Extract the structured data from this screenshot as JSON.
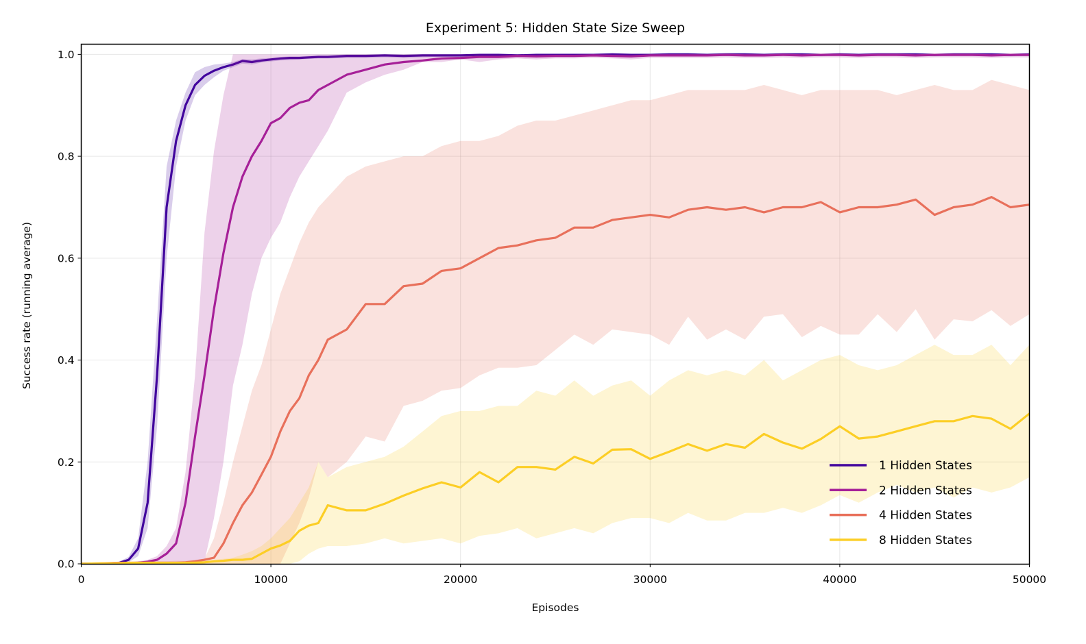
{
  "chart_data": {
    "type": "line",
    "title": "Experiment 5: Hidden State Size Sweep",
    "xlabel": "Episodes",
    "ylabel": "Success rate (running average)",
    "xlim": [
      0,
      50000
    ],
    "ylim": [
      0,
      1.02
    ],
    "x_ticks": [
      0,
      10000,
      20000,
      30000,
      40000,
      50000
    ],
    "x_tick_labels": [
      "0",
      "10000",
      "20000",
      "30000",
      "40000",
      "50000"
    ],
    "y_ticks": [
      0,
      0.2,
      0.4,
      0.6,
      0.8,
      1.0
    ],
    "y_tick_labels": [
      "0.0",
      "0.2",
      "0.4",
      "0.6",
      "0.8",
      "1.0"
    ],
    "grid": true,
    "legend_position": "bottom-right",
    "shaded_band": "range around each series",
    "x": [
      0,
      1000,
      2000,
      2500,
      3000,
      3500,
      4000,
      4500,
      5000,
      5500,
      6000,
      6500,
      7000,
      7500,
      8000,
      8500,
      9000,
      9500,
      10000,
      10500,
      11000,
      11500,
      12000,
      12500,
      13000,
      14000,
      15000,
      16000,
      17000,
      18000,
      19000,
      20000,
      21000,
      22000,
      23000,
      24000,
      25000,
      26000,
      27000,
      28000,
      29000,
      30000,
      31000,
      32000,
      33000,
      34000,
      35000,
      36000,
      37000,
      38000,
      39000,
      40000,
      41000,
      42000,
      43000,
      44000,
      45000,
      46000,
      47000,
      48000,
      49000,
      50000
    ],
    "series": [
      {
        "name": "1 Hidden States",
        "color": "#41049d",
        "values": [
          0,
          0,
          0.002,
          0.008,
          0.03,
          0.12,
          0.37,
          0.7,
          0.83,
          0.9,
          0.94,
          0.958,
          0.968,
          0.975,
          0.98,
          0.987,
          0.985,
          0.988,
          0.99,
          0.992,
          0.993,
          0.993,
          0.994,
          0.995,
          0.995,
          0.997,
          0.997,
          0.998,
          0.997,
          0.998,
          0.998,
          0.998,
          0.999,
          0.999,
          0.998,
          0.999,
          0.999,
          0.999,
          0.999,
          1.0,
          0.999,
          0.999,
          1.0,
          1.0,
          0.999,
          1.0,
          1.0,
          0.999,
          1.0,
          1.0,
          0.999,
          1.0,
          0.999,
          1.0,
          1.0,
          1.0,
          0.999,
          1.0,
          1.0,
          1.0,
          0.999,
          1.0
        ],
        "lower": [
          0,
          0,
          0,
          0.003,
          0.015,
          0.07,
          0.27,
          0.6,
          0.78,
          0.87,
          0.92,
          0.94,
          0.955,
          0.968,
          0.975,
          0.982,
          0.98,
          0.984,
          0.986,
          0.988,
          0.989,
          0.99,
          0.991,
          0.992,
          0.992,
          0.993,
          0.993,
          0.994,
          0.993,
          0.994,
          0.995,
          0.995,
          0.996,
          0.996,
          0.995,
          0.996,
          0.996,
          0.996,
          0.996,
          0.997,
          0.996,
          0.996,
          0.997,
          0.997,
          0.996,
          0.997,
          0.997,
          0.996,
          0.997,
          0.997,
          0.996,
          0.997,
          0.996,
          0.997,
          0.997,
          0.997,
          0.996,
          0.997,
          0.997,
          0.997,
          0.996,
          0.997
        ],
        "upper": [
          0,
          0,
          0.004,
          0.014,
          0.05,
          0.2,
          0.48,
          0.78,
          0.87,
          0.925,
          0.965,
          0.975,
          0.98,
          0.982,
          0.985,
          0.991,
          0.99,
          0.992,
          0.993,
          0.995,
          0.996,
          0.996,
          0.997,
          0.998,
          0.998,
          1,
          1,
          1,
          1,
          1,
          1,
          1,
          1,
          1,
          1,
          1,
          1,
          1,
          1,
          1,
          1,
          1,
          1,
          1,
          1,
          1,
          1,
          1,
          1,
          1,
          1,
          1,
          1,
          1,
          1,
          1,
          1,
          1,
          1,
          1,
          1,
          1
        ]
      },
      {
        "name": "2 Hidden States",
        "color": "#a62098",
        "values": [
          0,
          0,
          0,
          0.001,
          0.002,
          0.004,
          0.008,
          0.02,
          0.04,
          0.12,
          0.25,
          0.37,
          0.5,
          0.61,
          0.7,
          0.76,
          0.8,
          0.83,
          0.865,
          0.875,
          0.895,
          0.905,
          0.91,
          0.93,
          0.94,
          0.96,
          0.97,
          0.98,
          0.985,
          0.988,
          0.992,
          0.993,
          0.995,
          0.995,
          0.997,
          0.996,
          0.997,
          0.997,
          0.998,
          0.997,
          0.996,
          0.998,
          0.998,
          0.998,
          0.998,
          0.999,
          0.998,
          0.998,
          0.999,
          0.998,
          0.999,
          0.999,
          0.998,
          0.999,
          0.999,
          0.998,
          0.999,
          0.999,
          0.999,
          0.998,
          0.999,
          0.999
        ],
        "lower": [
          0,
          0,
          0,
          0,
          0,
          0,
          0,
          0,
          0,
          0,
          0,
          0.005,
          0.09,
          0.2,
          0.35,
          0.43,
          0.53,
          0.6,
          0.64,
          0.67,
          0.72,
          0.76,
          0.79,
          0.82,
          0.85,
          0.925,
          0.945,
          0.96,
          0.97,
          0.985,
          0.985,
          0.99,
          0.985,
          0.99,
          0.992,
          0.99,
          0.992,
          0.992,
          0.993,
          0.992,
          0.99,
          0.993,
          0.993,
          0.993,
          0.993,
          0.994,
          0.993,
          0.993,
          0.994,
          0.993,
          0.994,
          0.994,
          0.993,
          0.994,
          0.994,
          0.993,
          0.994,
          0.994,
          0.994,
          0.993,
          0.994,
          0.994
        ],
        "upper": [
          0,
          0,
          0.001,
          0.003,
          0.005,
          0.008,
          0.015,
          0.035,
          0.07,
          0.18,
          0.37,
          0.65,
          0.81,
          0.92,
          1,
          1,
          1,
          1,
          1,
          1,
          1,
          1,
          1,
          1,
          1,
          1,
          1,
          1,
          1,
          1,
          1,
          1,
          1,
          1,
          1,
          1,
          1,
          1,
          1,
          1,
          1,
          1,
          1,
          1,
          1,
          1,
          1,
          1,
          1,
          1,
          1,
          1,
          1,
          1,
          1,
          1,
          1,
          1,
          1,
          1,
          1,
          1
        ]
      },
      {
        "name": "4 Hidden States",
        "color": "#e8705b",
        "values": [
          0,
          0.001,
          0.002,
          0.002,
          0.002,
          0.002,
          0.002,
          0.002,
          0.002,
          0.003,
          0.005,
          0.008,
          0.012,
          0.04,
          0.08,
          0.115,
          0.14,
          0.175,
          0.21,
          0.26,
          0.3,
          0.325,
          0.37,
          0.4,
          0.44,
          0.46,
          0.51,
          0.51,
          0.545,
          0.55,
          0.575,
          0.58,
          0.6,
          0.62,
          0.625,
          0.635,
          0.64,
          0.66,
          0.66,
          0.675,
          0.68,
          0.685,
          0.68,
          0.695,
          0.7,
          0.695,
          0.7,
          0.69,
          0.7,
          0.7,
          0.71,
          0.69,
          0.7,
          0.7,
          0.705,
          0.715,
          0.685,
          0.7,
          0.705,
          0.72,
          0.7,
          0.705
        ],
        "lower": [
          0,
          0,
          0,
          0,
          0,
          0,
          0,
          0,
          0,
          0,
          0,
          0,
          0,
          0,
          0,
          0,
          0,
          0,
          0,
          0,
          0.04,
          0.08,
          0.13,
          0.2,
          0.17,
          0.2,
          0.25,
          0.24,
          0.31,
          0.32,
          0.34,
          0.345,
          0.37,
          0.385,
          0.385,
          0.39,
          0.42,
          0.45,
          0.43,
          0.46,
          0.455,
          0.45,
          0.43,
          0.485,
          0.44,
          0.46,
          0.44,
          0.485,
          0.49,
          0.445,
          0.467,
          0.45,
          0.45,
          0.49,
          0.455,
          0.5,
          0.44,
          0.48,
          0.476,
          0.498,
          0.467,
          0.49
        ],
        "upper": [
          0,
          0.002,
          0.004,
          0.004,
          0.005,
          0.005,
          0.005,
          0.005,
          0.006,
          0.006,
          0.008,
          0.01,
          0.05,
          0.12,
          0.2,
          0.27,
          0.34,
          0.39,
          0.46,
          0.53,
          0.58,
          0.63,
          0.67,
          0.7,
          0.72,
          0.76,
          0.78,
          0.79,
          0.8,
          0.8,
          0.82,
          0.83,
          0.83,
          0.84,
          0.86,
          0.87,
          0.87,
          0.88,
          0.89,
          0.9,
          0.91,
          0.91,
          0.92,
          0.93,
          0.93,
          0.93,
          0.93,
          0.94,
          0.93,
          0.92,
          0.93,
          0.93,
          0.93,
          0.93,
          0.92,
          0.93,
          0.94,
          0.93,
          0.93,
          0.95,
          0.94,
          0.93
        ]
      },
      {
        "name": "8 Hidden States",
        "color": "#fcce25",
        "values": [
          0,
          0.001,
          0.001,
          0.002,
          0.002,
          0.002,
          0.002,
          0.002,
          0.002,
          0.002,
          0.002,
          0.003,
          0.005,
          0.006,
          0.008,
          0.008,
          0.01,
          0.02,
          0.03,
          0.036,
          0.045,
          0.065,
          0.075,
          0.08,
          0.115,
          0.105,
          0.105,
          0.118,
          0.134,
          0.148,
          0.16,
          0.15,
          0.18,
          0.16,
          0.19,
          0.19,
          0.185,
          0.21,
          0.197,
          0.224,
          0.225,
          0.206,
          0.22,
          0.235,
          0.222,
          0.235,
          0.228,
          0.255,
          0.238,
          0.226,
          0.245,
          0.27,
          0.246,
          0.25,
          0.26,
          0.27,
          0.28,
          0.28,
          0.29,
          0.285,
          0.265,
          0.295
        ],
        "lower": [
          0,
          0,
          0,
          0,
          0,
          0,
          0,
          0,
          0,
          0,
          0,
          0,
          0,
          0,
          0,
          0,
          0,
          0,
          0,
          0,
          0,
          0.005,
          0.02,
          0.03,
          0.035,
          0.035,
          0.04,
          0.05,
          0.04,
          0.045,
          0.05,
          0.04,
          0.055,
          0.06,
          0.07,
          0.05,
          0.06,
          0.07,
          0.06,
          0.08,
          0.09,
          0.09,
          0.08,
          0.1,
          0.085,
          0.085,
          0.1,
          0.1,
          0.11,
          0.1,
          0.115,
          0.135,
          0.12,
          0.14,
          0.155,
          0.14,
          0.15,
          0.13,
          0.15,
          0.14,
          0.15,
          0.17
        ],
        "upper": [
          0,
          0.002,
          0.003,
          0.004,
          0.004,
          0.004,
          0.004,
          0.004,
          0.004,
          0.004,
          0.005,
          0.006,
          0.008,
          0.01,
          0.012,
          0.018,
          0.025,
          0.035,
          0.05,
          0.07,
          0.09,
          0.12,
          0.15,
          0.2,
          0.17,
          0.19,
          0.2,
          0.21,
          0.23,
          0.26,
          0.29,
          0.3,
          0.3,
          0.31,
          0.31,
          0.34,
          0.33,
          0.36,
          0.33,
          0.35,
          0.36,
          0.33,
          0.36,
          0.38,
          0.37,
          0.38,
          0.37,
          0.4,
          0.36,
          0.38,
          0.4,
          0.41,
          0.39,
          0.38,
          0.39,
          0.41,
          0.43,
          0.41,
          0.41,
          0.43,
          0.39,
          0.43
        ]
      }
    ]
  }
}
